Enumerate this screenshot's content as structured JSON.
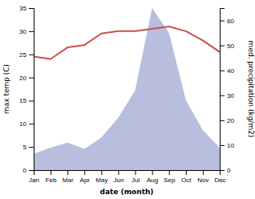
{
  "chart_data": {
    "type": "line",
    "categories": [
      "Jan",
      "Feb",
      "Mar",
      "Apr",
      "May",
      "Jun",
      "Jul",
      "Aug",
      "Sep",
      "Oct",
      "Nov",
      "Dec"
    ],
    "xlabel": "date (month)",
    "ylabel": "max temp (C)",
    "y2label": "med. precipitation (kg/m2)",
    "ylim": [
      0,
      35
    ],
    "yticks": [
      0,
      5,
      10,
      15,
      20,
      25,
      30,
      35
    ],
    "y2lim": [
      0,
      65
    ],
    "y2ticks": [
      0,
      10,
      20,
      30,
      40,
      50,
      60
    ],
    "grid": false,
    "series": [
      {
        "type": "area",
        "axis": "y2",
        "color": "#b8bede",
        "values": [
          6.5,
          9.0,
          11.0,
          8.5,
          13.0,
          21.0,
          32.0,
          65.0,
          55.0,
          28.0,
          16.0,
          9.0
        ]
      },
      {
        "type": "line",
        "color": "#c8524a",
        "values": [
          24.5,
          24.0,
          26.5,
          27.0,
          29.5,
          30.0,
          30.0,
          30.5,
          31.0,
          30.0,
          28.0,
          25.5
        ]
      }
    ]
  }
}
